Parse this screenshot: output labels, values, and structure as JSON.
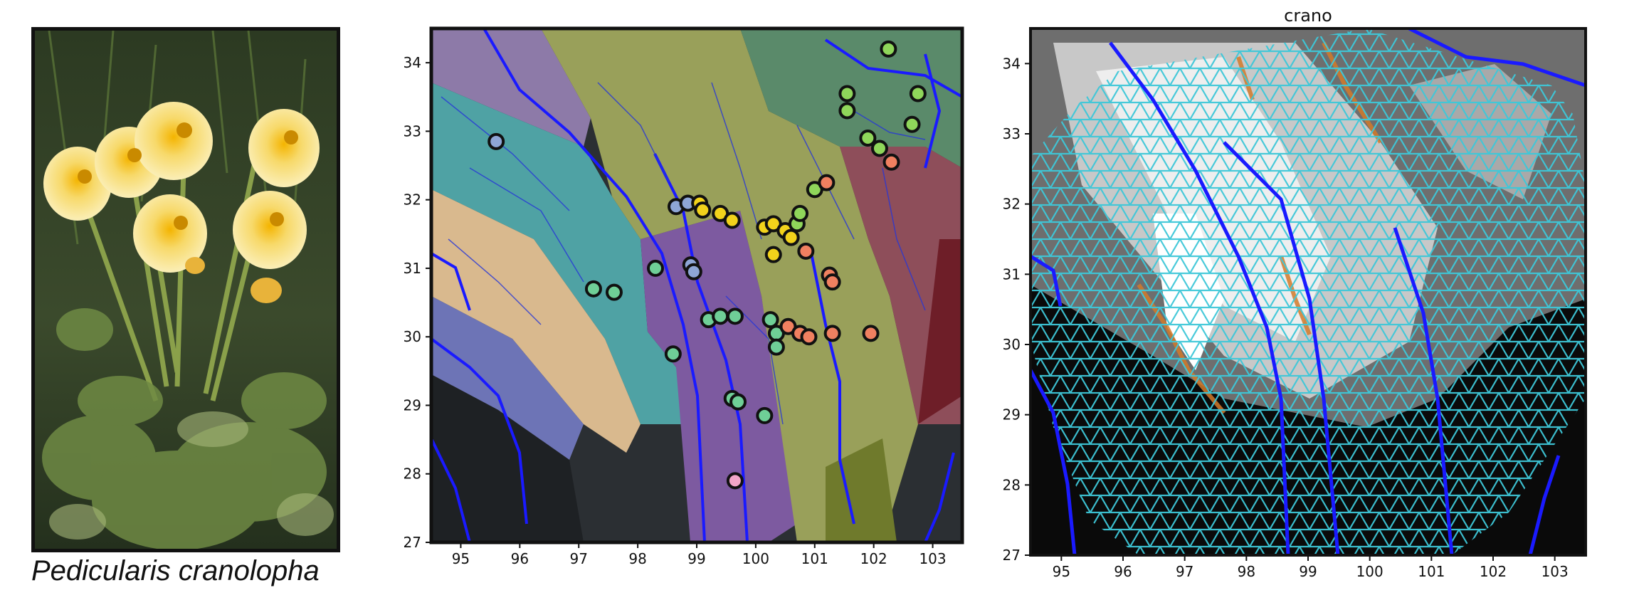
{
  "caption": "Pedicularis cranolopha",
  "photo": {
    "subject": "flower-photo"
  },
  "map_left": {
    "x_ticks": [
      "95",
      "96",
      "97",
      "98",
      "99",
      "100",
      "101",
      "102",
      "103"
    ],
    "y_ticks": [
      "34",
      "33",
      "32",
      "31",
      "30",
      "29",
      "28",
      "27"
    ],
    "x_range": [
      94.5,
      103.5
    ],
    "y_range": [
      27,
      34.5
    ],
    "points": [
      {
        "x": 95.6,
        "y": 32.85,
        "c": "#8ea6d6"
      },
      {
        "x": 97.25,
        "y": 30.7,
        "c": "#6fcf97"
      },
      {
        "x": 97.6,
        "y": 30.65,
        "c": "#6fcf97"
      },
      {
        "x": 98.3,
        "y": 31.0,
        "c": "#6fcf97"
      },
      {
        "x": 98.6,
        "y": 29.75,
        "c": "#6fcf97"
      },
      {
        "x": 98.65,
        "y": 31.9,
        "c": "#8ea6d6"
      },
      {
        "x": 98.85,
        "y": 31.95,
        "c": "#8ea6d6"
      },
      {
        "x": 98.9,
        "y": 31.05,
        "c": "#8ea6d6"
      },
      {
        "x": 98.95,
        "y": 30.95,
        "c": "#8ea6d6"
      },
      {
        "x": 99.05,
        "y": 31.95,
        "c": "#f2d21b"
      },
      {
        "x": 99.1,
        "y": 31.85,
        "c": "#f2d21b"
      },
      {
        "x": 99.4,
        "y": 31.8,
        "c": "#f2d21b"
      },
      {
        "x": 99.6,
        "y": 31.7,
        "c": "#f2d21b"
      },
      {
        "x": 99.2,
        "y": 30.25,
        "c": "#6fcf97"
      },
      {
        "x": 99.4,
        "y": 30.3,
        "c": "#6fcf97"
      },
      {
        "x": 99.65,
        "y": 30.3,
        "c": "#6fcf97"
      },
      {
        "x": 99.6,
        "y": 29.1,
        "c": "#6fcf97"
      },
      {
        "x": 99.7,
        "y": 29.05,
        "c": "#6fcf97"
      },
      {
        "x": 99.65,
        "y": 27.9,
        "c": "#f2a6c8"
      },
      {
        "x": 100.15,
        "y": 28.85,
        "c": "#6fcf97"
      },
      {
        "x": 100.15,
        "y": 31.6,
        "c": "#f2d21b"
      },
      {
        "x": 100.3,
        "y": 31.65,
        "c": "#f2d21b"
      },
      {
        "x": 100.5,
        "y": 31.55,
        "c": "#f2d21b"
      },
      {
        "x": 100.6,
        "y": 31.45,
        "c": "#f2d21b"
      },
      {
        "x": 100.3,
        "y": 31.2,
        "c": "#f2d21b"
      },
      {
        "x": 100.25,
        "y": 30.25,
        "c": "#6fcf97"
      },
      {
        "x": 100.35,
        "y": 30.05,
        "c": "#6fcf97"
      },
      {
        "x": 100.35,
        "y": 29.85,
        "c": "#6fcf97"
      },
      {
        "x": 100.55,
        "y": 30.15,
        "c": "#f08060"
      },
      {
        "x": 100.75,
        "y": 30.05,
        "c": "#f08060"
      },
      {
        "x": 100.9,
        "y": 30.0,
        "c": "#f08060"
      },
      {
        "x": 100.85,
        "y": 31.25,
        "c": "#f08060"
      },
      {
        "x": 100.7,
        "y": 31.65,
        "c": "#8fd65a"
      },
      {
        "x": 100.75,
        "y": 31.8,
        "c": "#8fd65a"
      },
      {
        "x": 101.0,
        "y": 32.15,
        "c": "#8fd65a"
      },
      {
        "x": 101.2,
        "y": 32.25,
        "c": "#f08060"
      },
      {
        "x": 101.25,
        "y": 30.9,
        "c": "#f08060"
      },
      {
        "x": 101.3,
        "y": 30.8,
        "c": "#f08060"
      },
      {
        "x": 101.3,
        "y": 30.05,
        "c": "#f08060"
      },
      {
        "x": 101.95,
        "y": 30.05,
        "c": "#f08060"
      },
      {
        "x": 101.55,
        "y": 33.55,
        "c": "#8fd65a"
      },
      {
        "x": 101.55,
        "y": 33.3,
        "c": "#8fd65a"
      },
      {
        "x": 101.9,
        "y": 32.9,
        "c": "#8fd65a"
      },
      {
        "x": 102.1,
        "y": 32.75,
        "c": "#8fd65a"
      },
      {
        "x": 102.3,
        "y": 32.55,
        "c": "#f08060"
      },
      {
        "x": 102.25,
        "y": 34.2,
        "c": "#8fd65a"
      },
      {
        "x": 102.65,
        "y": 33.1,
        "c": "#8fd65a"
      },
      {
        "x": 102.75,
        "y": 33.55,
        "c": "#8fd65a"
      }
    ]
  },
  "map_right": {
    "title": "crano",
    "x_ticks": [
      "95",
      "96",
      "97",
      "98",
      "99",
      "100",
      "101",
      "102",
      "103"
    ],
    "y_ticks": [
      "34",
      "33",
      "32",
      "31",
      "30",
      "29",
      "28",
      "27"
    ],
    "x_range": [
      94.5,
      103.5
    ],
    "y_range": [
      27,
      34.5
    ]
  }
}
